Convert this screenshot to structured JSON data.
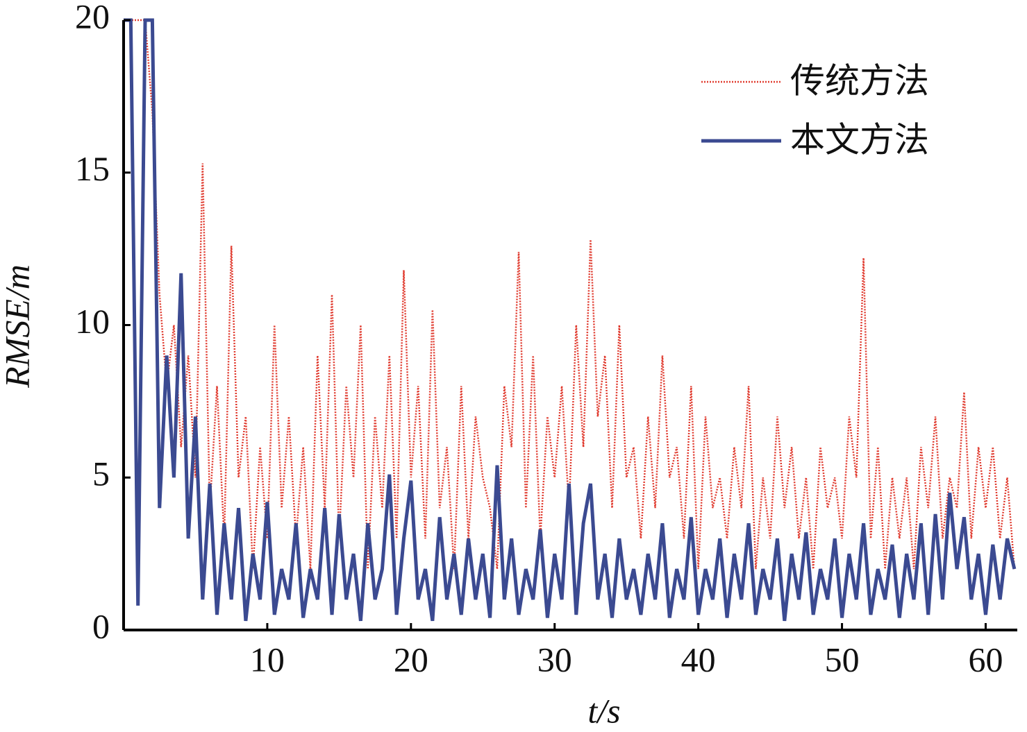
{
  "chart_data": {
    "type": "line",
    "x_label": "t/s",
    "y_label": "RMSE/m",
    "xlim": [
      0,
      62.2
    ],
    "ylim": [
      0,
      20
    ],
    "xticks": [
      10,
      20,
      30,
      40,
      50,
      60
    ],
    "yticks": [
      0,
      5,
      10,
      15,
      20
    ],
    "legend": "upper right",
    "x": [
      0,
      0.5,
      1,
      1.5,
      2,
      2.5,
      3,
      3.5,
      4,
      4.5,
      5,
      5.5,
      6,
      6.5,
      7,
      7.5,
      8,
      8.5,
      9,
      9.5,
      10,
      10.5,
      11,
      11.5,
      12,
      12.5,
      13,
      13.5,
      14,
      14.5,
      15,
      15.5,
      16,
      16.5,
      17,
      17.5,
      18,
      18.5,
      19,
      19.5,
      20,
      20.5,
      21,
      21.5,
      22,
      22.5,
      23,
      23.5,
      24,
      24.5,
      25,
      25.5,
      26,
      26.5,
      27,
      27.5,
      28,
      28.5,
      29,
      29.5,
      30,
      30.5,
      31,
      31.5,
      32,
      32.5,
      33,
      33.5,
      34,
      34.5,
      35,
      35.5,
      36,
      36.5,
      37,
      37.5,
      38,
      38.5,
      39,
      39.5,
      40,
      40.5,
      41,
      41.5,
      42,
      42.5,
      43,
      43.5,
      44,
      44.5,
      45,
      45.5,
      46,
      46.5,
      47,
      47.5,
      48,
      48.5,
      49,
      49.5,
      50,
      50.5,
      51,
      51.5,
      52,
      52.5,
      53,
      53.5,
      54,
      54.5,
      55,
      55.5,
      56,
      56.5,
      57,
      57.5,
      58,
      58.5,
      59,
      59.5,
      60,
      60.5,
      61,
      61.5,
      62
    ],
    "series": [
      {
        "name": "传统方法",
        "color": "#e03a2e",
        "dash": "dotted",
        "values": [
          20,
          20,
          20,
          20,
          17,
          11,
          8,
          10,
          6,
          9,
          5,
          15.3,
          4,
          8,
          3,
          12.6,
          5,
          7,
          2,
          6,
          3,
          10,
          4,
          7,
          3,
          6,
          2,
          9,
          4,
          11,
          3,
          8,
          5,
          10,
          2,
          7,
          4,
          9,
          3,
          11.8,
          5,
          8,
          3,
          10.5,
          4,
          6,
          2,
          8,
          3,
          7,
          5,
          4,
          2,
          8,
          6,
          12.4,
          4,
          9,
          3,
          7,
          5,
          8,
          4,
          10,
          6,
          12.8,
          7,
          9,
          4,
          10,
          5,
          6,
          3,
          7,
          4,
          9,
          5,
          6,
          3,
          8,
          2,
          7,
          4,
          5,
          3,
          6,
          4,
          8,
          2,
          5,
          3,
          7,
          4,
          6,
          3,
          5,
          2,
          6,
          4,
          5,
          3,
          7,
          5,
          12.2,
          3,
          6,
          2,
          5,
          3,
          5,
          2,
          6,
          4,
          7,
          3,
          5,
          4,
          7.8,
          3,
          6,
          4,
          6,
          3,
          5,
          2
        ]
      },
      {
        "name": "本文方法",
        "color": "#3b4a91",
        "dash": "solid",
        "values": [
          20,
          20,
          0.8,
          20,
          20,
          4,
          9,
          5,
          11.7,
          3,
          7,
          1,
          4.8,
          0.5,
          3.5,
          1,
          4,
          0.3,
          2.5,
          1,
          4.2,
          0.5,
          2,
          1,
          3.5,
          0.4,
          2,
          1,
          4,
          0.5,
          3.8,
          1,
          2.5,
          0.3,
          3.5,
          1,
          2,
          5.1,
          0.5,
          3,
          4.9,
          1,
          2,
          0.3,
          3.7,
          1,
          2.5,
          0.5,
          3,
          1,
          2.5,
          0.4,
          5.4,
          1,
          3,
          0.5,
          2,
          1,
          3.3,
          0.4,
          2.5,
          1,
          4.8,
          0.5,
          3.5,
          4.8,
          1,
          2.5,
          0.4,
          3,
          1,
          2,
          0.5,
          2.5,
          1,
          3.5,
          0.4,
          2,
          1,
          3.7,
          0.5,
          2,
          1,
          3,
          0.4,
          2.5,
          1,
          3.5,
          0.5,
          2,
          1,
          3,
          0.3,
          2.5,
          1,
          3.2,
          0.5,
          2,
          1,
          3,
          0.4,
          2.5,
          1,
          3.5,
          0.5,
          2,
          1,
          2.8,
          0.4,
          2.5,
          1,
          3.5,
          0.5,
          3.8,
          1,
          4.5,
          2,
          3.7,
          1,
          2.5,
          0.5,
          2.8,
          1,
          3,
          2
        ]
      }
    ]
  }
}
